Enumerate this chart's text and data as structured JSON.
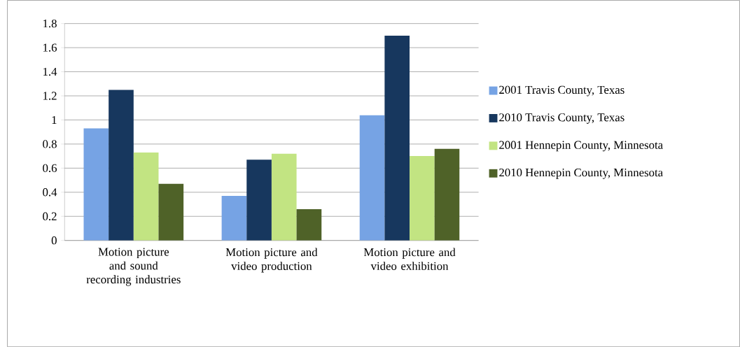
{
  "chart_data": {
    "type": "bar",
    "categories": [
      "Motion picture and sound recording industries",
      "Motion picture and video production",
      "Motion picture and video exhibition"
    ],
    "series": [
      {
        "name": "2001 Travis County, Texas",
        "color": "#76a3e4",
        "values": [
          0.93,
          0.37,
          1.04
        ]
      },
      {
        "name": "2010 Travis County, Texas",
        "color": "#17375e",
        "values": [
          1.25,
          0.67,
          1.7
        ]
      },
      {
        "name": "2001 Hennepin County, Minnesota",
        "color": "#c2e482",
        "values": [
          0.73,
          0.72,
          0.7
        ]
      },
      {
        "name": "2010 Hennepin County, Minnesota",
        "color": "#4f6228",
        "values": [
          0.47,
          0.26,
          0.76
        ]
      }
    ],
    "ylim": [
      0,
      1.8
    ],
    "yticks": [
      0,
      0.2,
      0.4,
      0.6,
      0.8,
      1,
      1.2,
      1.4,
      1.6,
      1.8
    ],
    "grid": "y",
    "legend": "right"
  }
}
